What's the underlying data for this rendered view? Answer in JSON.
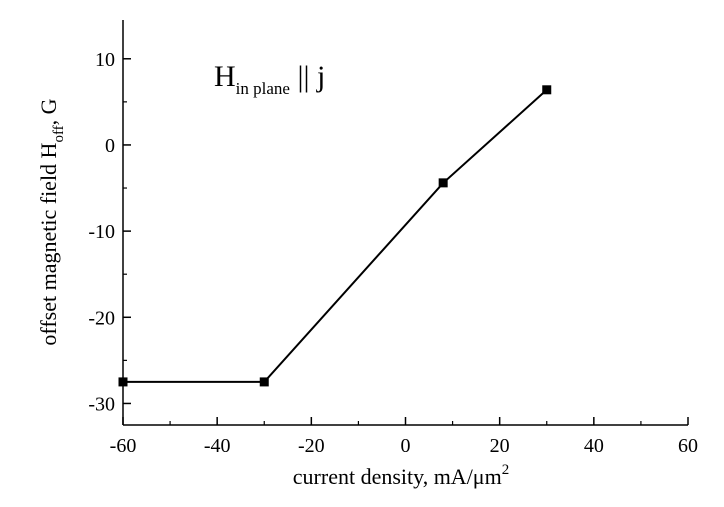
{
  "chart_data": {
    "type": "line",
    "title": "",
    "xlabel": "current density, mA/μm",
    "xlabel_superscript": "2",
    "ylabel": "offset magnetic field H",
    "ylabel_subscript": "off",
    "ylabel_suffix": ", G",
    "xlim": [
      -60,
      60
    ],
    "ylim": [
      -32.5,
      14.5
    ],
    "xticks": [
      -60,
      -40,
      -20,
      0,
      20,
      40,
      60
    ],
    "yticks": [
      -30,
      -20,
      -10,
      0,
      10
    ],
    "xtick_labels": [
      "-60",
      "-40",
      "-20",
      "0",
      "20",
      "40",
      "60"
    ],
    "ytick_labels": [
      "-30",
      "-20",
      "-10",
      "0",
      "10"
    ],
    "grid": false,
    "legend": "none",
    "line_color": "#000000",
    "marker": "square",
    "series": [
      {
        "x": [
          -60,
          -30,
          8,
          30
        ],
        "y": [
          -27.5,
          -27.5,
          -4.4,
          6.4
        ]
      }
    ],
    "annotation": {
      "main": "H",
      "subscript": "in plane",
      "suffix": " || j"
    }
  }
}
